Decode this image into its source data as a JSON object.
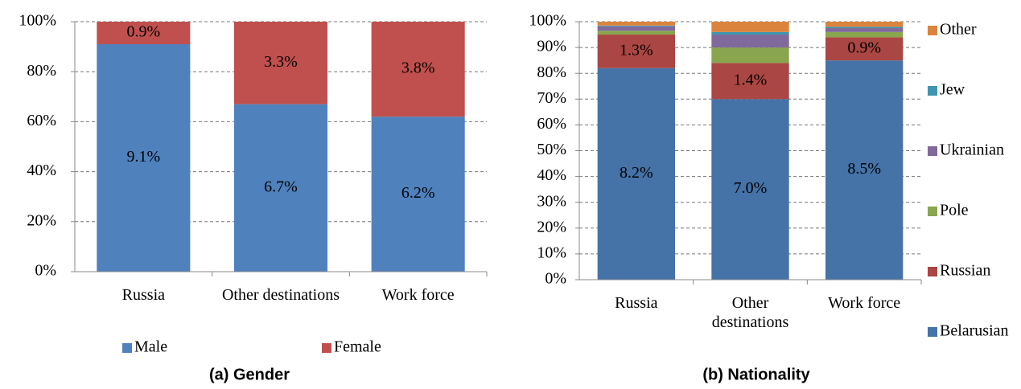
{
  "chart_data": [
    {
      "type": "bar_100",
      "caption": "(a) Gender",
      "categories": [
        "Russia",
        "Other destinations",
        "Work force"
      ],
      "series": [
        {
          "name": "Male",
          "color": "#4f81bd",
          "values": [
            9.1,
            6.7,
            6.2
          ],
          "value_labels": [
            "9.1%",
            "6.7%",
            "6.2%"
          ]
        },
        {
          "name": "Female",
          "color": "#c0504d",
          "values": [
            0.9,
            3.3,
            3.8
          ],
          "value_labels": [
            "0.9%",
            "3.3%",
            "3.8%"
          ]
        }
      ],
      "ylim": [
        0,
        100
      ],
      "yticks": [
        {
          "value": 0,
          "label": "0%"
        },
        {
          "value": 20,
          "label": "20%"
        },
        {
          "value": 40,
          "label": "40%"
        },
        {
          "value": 60,
          "label": "60%"
        },
        {
          "value": 80,
          "label": "80%"
        },
        {
          "value": 100,
          "label": "100%"
        }
      ],
      "grid": true,
      "legend": "bottom"
    },
    {
      "type": "bar_100",
      "caption": "(b) Nationality",
      "categories": [
        "Russia",
        "Other destinations",
        "Work force"
      ],
      "series": [
        {
          "name": "Belarusian",
          "color": "#4572a7",
          "values": [
            8.2,
            7.0,
            8.5
          ],
          "value_labels": [
            "8.2%",
            "7.0%",
            "8.5%"
          ]
        },
        {
          "name": "Russian",
          "color": "#aa4643",
          "values": [
            1.3,
            1.4,
            0.9
          ],
          "value_labels": [
            "1.3%",
            "1.4%",
            "0.9%"
          ]
        },
        {
          "name": "Pole",
          "color": "#89a54e",
          "values": [
            0.15,
            0.6,
            0.2
          ]
        },
        {
          "name": "Ukrainian",
          "color": "#80699b",
          "values": [
            0.17,
            0.5,
            0.15
          ]
        },
        {
          "name": "Jew",
          "color": "#3d96ae",
          "values": [
            0.03,
            0.1,
            0.05
          ]
        },
        {
          "name": "Other",
          "color": "#db843d",
          "values": [
            0.15,
            0.4,
            0.2
          ]
        }
      ],
      "ylim": [
        0,
        100
      ],
      "yticks": [
        {
          "value": 0,
          "label": "0%"
        },
        {
          "value": 10,
          "label": "10%"
        },
        {
          "value": 20,
          "label": "20%"
        },
        {
          "value": 30,
          "label": "30%"
        },
        {
          "value": 40,
          "label": "40%"
        },
        {
          "value": 50,
          "label": "50%"
        },
        {
          "value": 60,
          "label": "60%"
        },
        {
          "value": 70,
          "label": "70%"
        },
        {
          "value": 80,
          "label": "80%"
        },
        {
          "value": 90,
          "label": "90%"
        },
        {
          "value": 100,
          "label": "100%"
        }
      ],
      "grid": true,
      "legend": "right"
    }
  ]
}
